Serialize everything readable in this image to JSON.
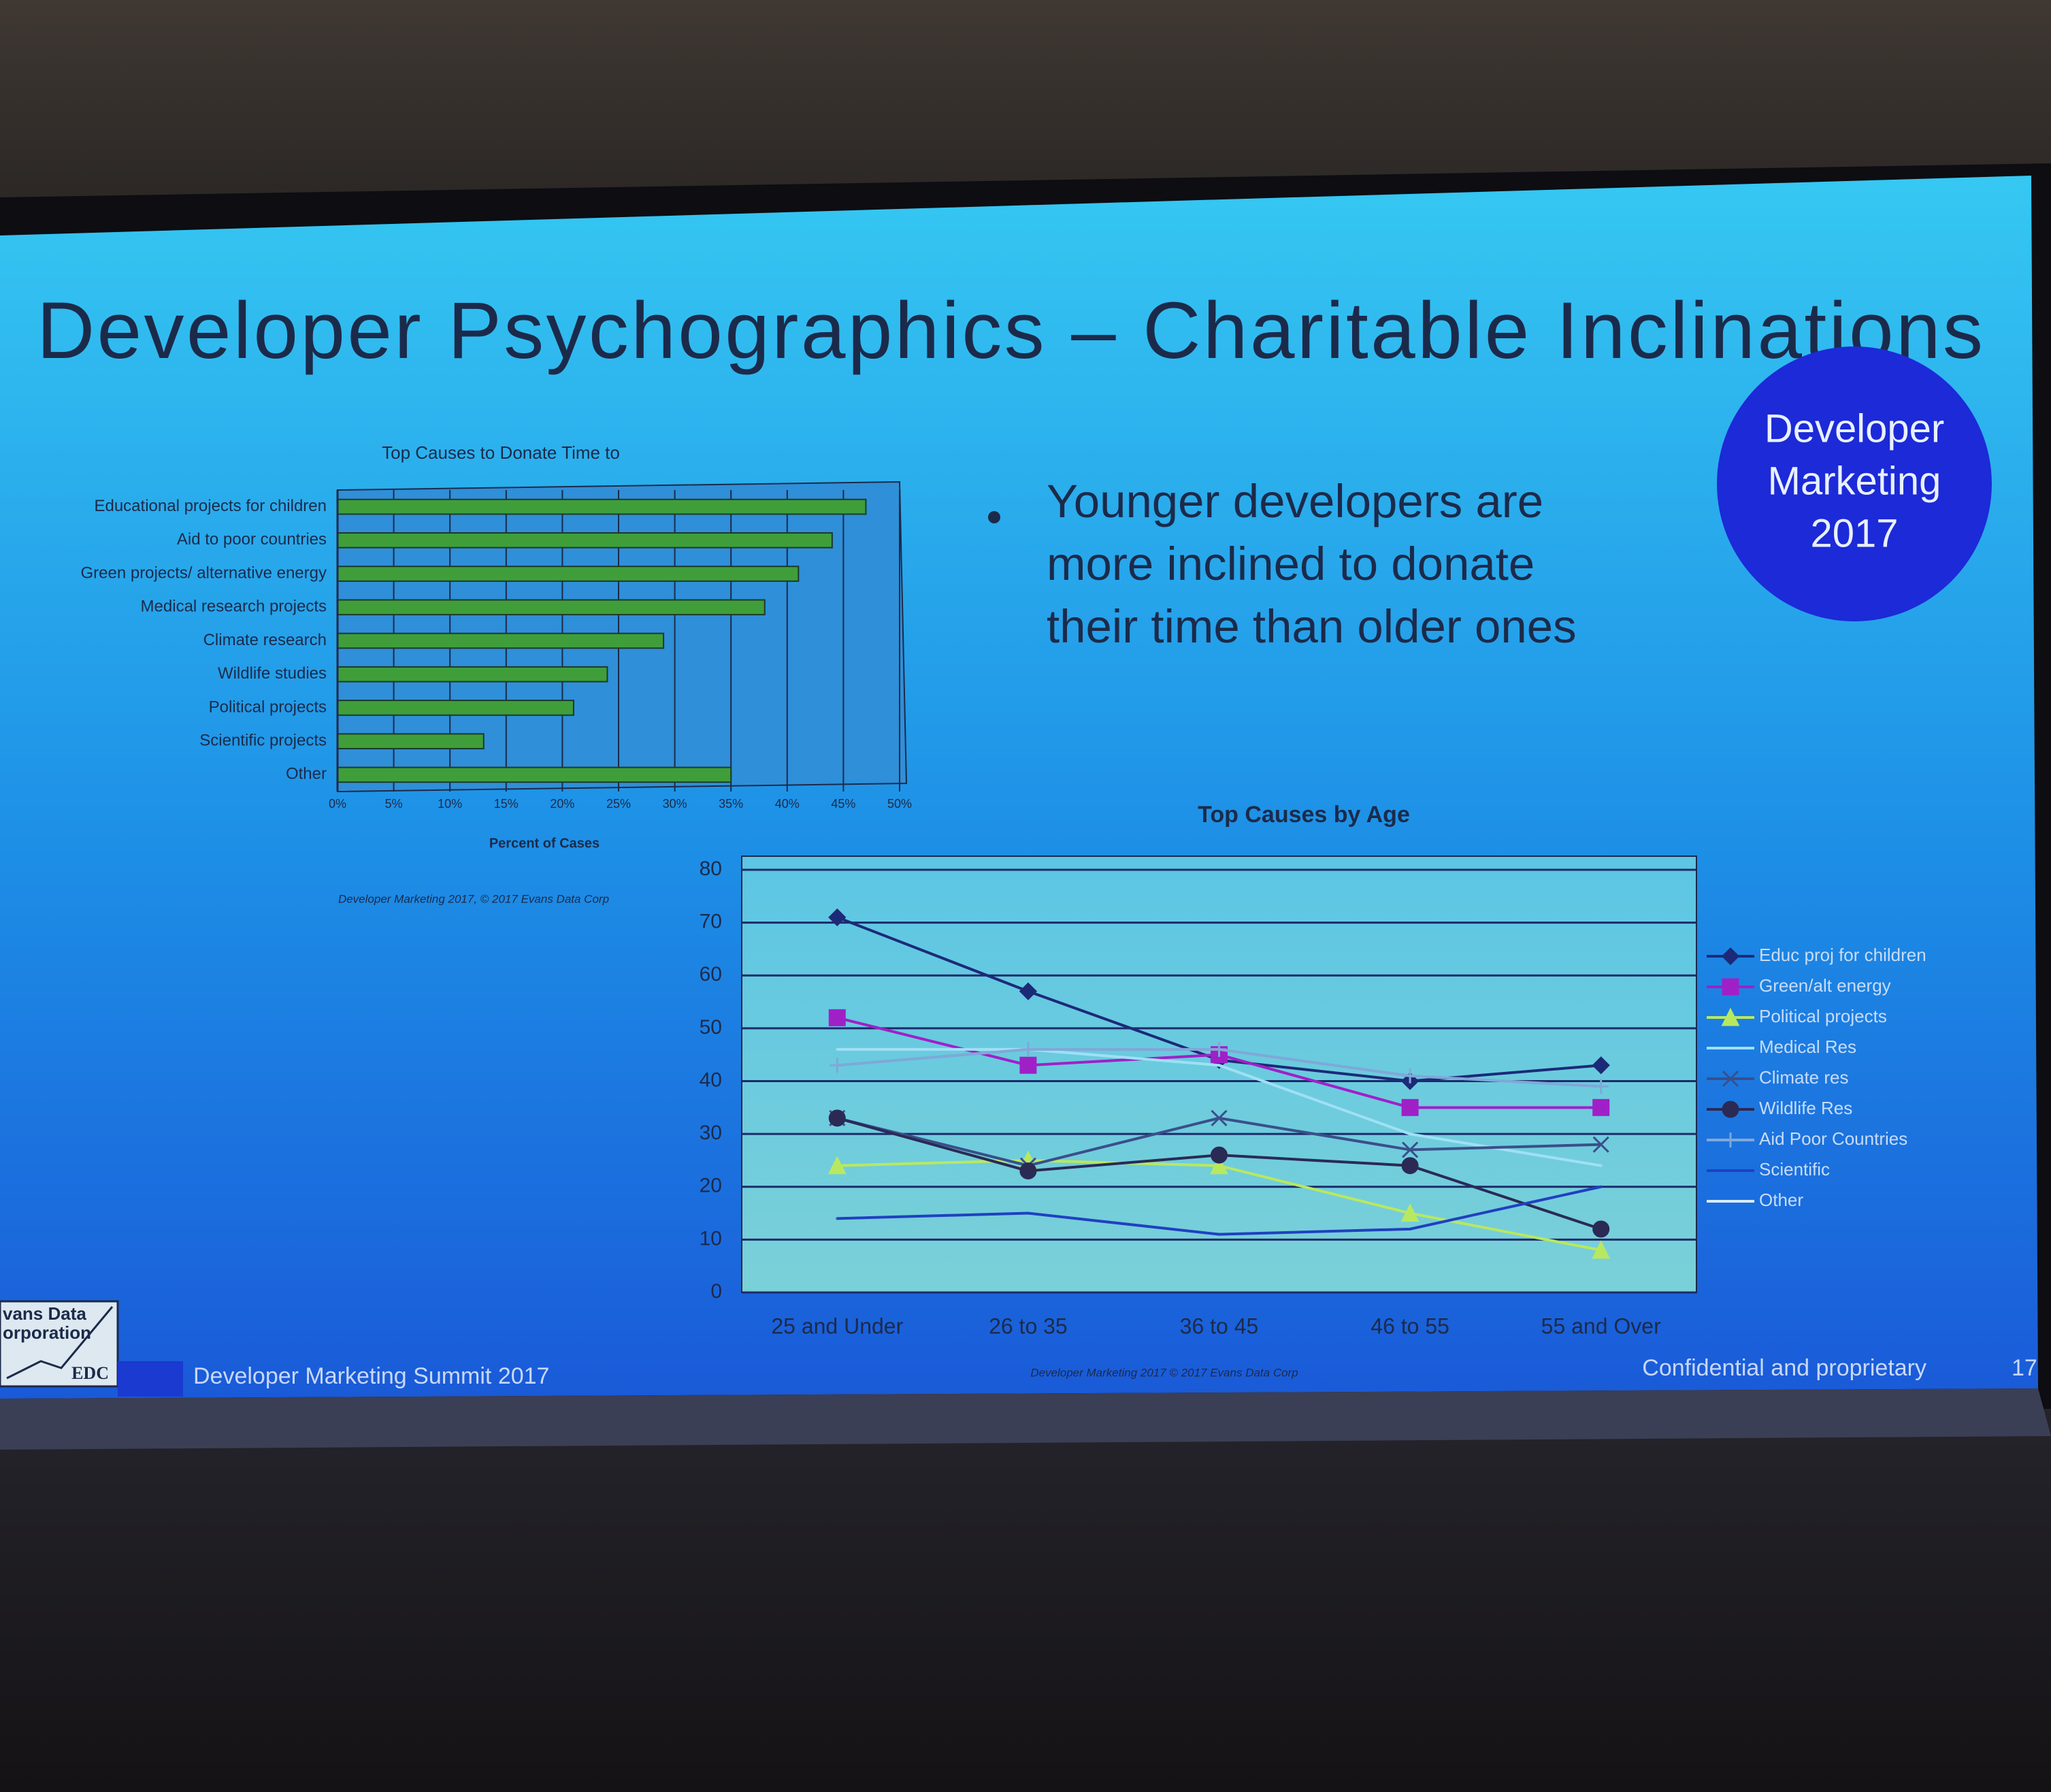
{
  "slide": {
    "title": "Developer Psychographics – Charitable Inclinations",
    "bullet_lines": [
      "Younger developers are",
      "more inclined to donate",
      "their time than older ones"
    ],
    "badge_lines": [
      "Developer",
      "Marketing",
      "2017"
    ],
    "footer_left": "Developer Marketing Summit 2017",
    "footer_right": "Confidential and proprietary",
    "page_number": "17",
    "logo_lines": [
      "vans Data",
      "orporation",
      "EDC"
    ]
  },
  "chart_data": [
    {
      "type": "hbar",
      "title": "Top Causes to Donate Time to",
      "x_label": "Percent of Cases",
      "source": "Developer Marketing 2017, © 2017 Evans Data Corp",
      "categories": [
        "Educational projects for children",
        "Aid to poor countries",
        "Green projects/ alternative energy",
        "Medical research projects",
        "Climate research",
        "Wildlife studies",
        "Political projects",
        "Scientific projects",
        "Other"
      ],
      "values": [
        47,
        44,
        41,
        38,
        29,
        24,
        21,
        13,
        35
      ],
      "color": "#3f9e3a",
      "xlim": [
        0,
        50
      ],
      "xticks": [
        {
          "value": 0,
          "label": "0%"
        },
        {
          "value": 5,
          "label": "5%"
        },
        {
          "value": 10,
          "label": "10%"
        },
        {
          "value": 15,
          "label": "15%"
        },
        {
          "value": 20,
          "label": "20%"
        },
        {
          "value": 25,
          "label": "25%"
        },
        {
          "value": 30,
          "label": "30%"
        },
        {
          "value": 35,
          "label": "35%"
        },
        {
          "value": 40,
          "label": "40%"
        },
        {
          "value": 45,
          "label": "45%"
        },
        {
          "value": 50,
          "label": "50%"
        }
      ],
      "grid": true
    },
    {
      "type": "line",
      "title": "Top Causes by Age",
      "source": "Developer Marketing 2017 © 2017 Evans Data Corp",
      "categories": [
        "25 and Under",
        "26 to 35",
        "36 to 45",
        "46 to 55",
        "55 and Over"
      ],
      "ylim": [
        0,
        80
      ],
      "yticks": [
        0,
        10,
        20,
        30,
        40,
        50,
        60,
        70,
        80
      ],
      "grid": true,
      "legend": "right",
      "series": [
        {
          "name": "Educ proj for children",
          "color": "#1c2a78",
          "marker": "diamond",
          "values": [
            71,
            57,
            44,
            40,
            43
          ]
        },
        {
          "name": "Green/alt energy",
          "color": "#a020c8",
          "marker": "square",
          "values": [
            52,
            43,
            45,
            35,
            35
          ]
        },
        {
          "name": "Political projects",
          "color": "#b8e860",
          "marker": "triangle",
          "values": [
            24,
            25,
            24,
            15,
            8
          ]
        },
        {
          "name": "Medical Res",
          "color": "#9fe0f5",
          "marker": "none",
          "values": [
            46,
            46,
            43,
            30,
            24
          ]
        },
        {
          "name": "Climate res",
          "color": "#3a4f8a",
          "marker": "x",
          "values": [
            33,
            24,
            33,
            27,
            28
          ]
        },
        {
          "name": "Wildlife Res",
          "color": "#2a2a55",
          "marker": "circle",
          "values": [
            33,
            23,
            26,
            24,
            12
          ]
        },
        {
          "name": "Aid Poor Countries",
          "color": "#7fa8d8",
          "marker": "plus",
          "values": [
            43,
            46,
            46,
            41,
            39
          ]
        },
        {
          "name": "Scientific",
          "color": "#2040c0",
          "marker": "none",
          "values": [
            14,
            15,
            11,
            12,
            20
          ]
        },
        {
          "name": "Other",
          "color": "#d8ecf8",
          "marker": "none",
          "values": [
            null,
            null,
            null,
            null,
            null
          ]
        }
      ]
    }
  ]
}
